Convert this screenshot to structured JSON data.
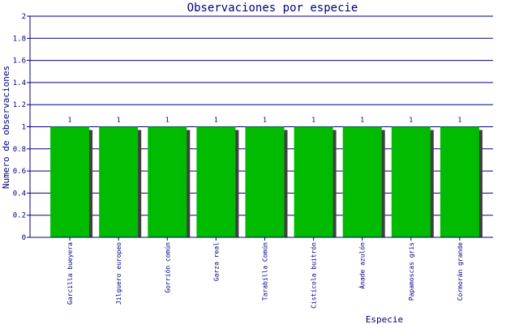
{
  "chart_data": {
    "type": "bar",
    "title": "Observaciones por especie",
    "xlabel": "Especie",
    "ylabel": "Numero de observaciones",
    "ylim": [
      0,
      2
    ],
    "yticks": [
      "0",
      "0.2",
      "0.4",
      "0.6",
      "0.8",
      "1",
      "1.2",
      "1.4",
      "1.6",
      "1.8",
      "2"
    ],
    "grid": true,
    "categories": [
      "Garcilla bueyera",
      "Jilguero europeo",
      "Gorrión común",
      "Garza real",
      "Tarabilla Común",
      "Cistícola buitrón",
      "Ánade azulón",
      "Papamoscas gris",
      "Cormorán grande"
    ],
    "values": [
      1,
      1,
      1,
      1,
      1,
      1,
      1,
      1,
      1
    ],
    "value_labels": [
      "1",
      "1",
      "1",
      "1",
      "1",
      "1",
      "1",
      "1",
      "1"
    ],
    "colors": {
      "bar": "#00bb00",
      "shadow": "#404040",
      "axis": "#000080",
      "grid": "#000080"
    }
  }
}
